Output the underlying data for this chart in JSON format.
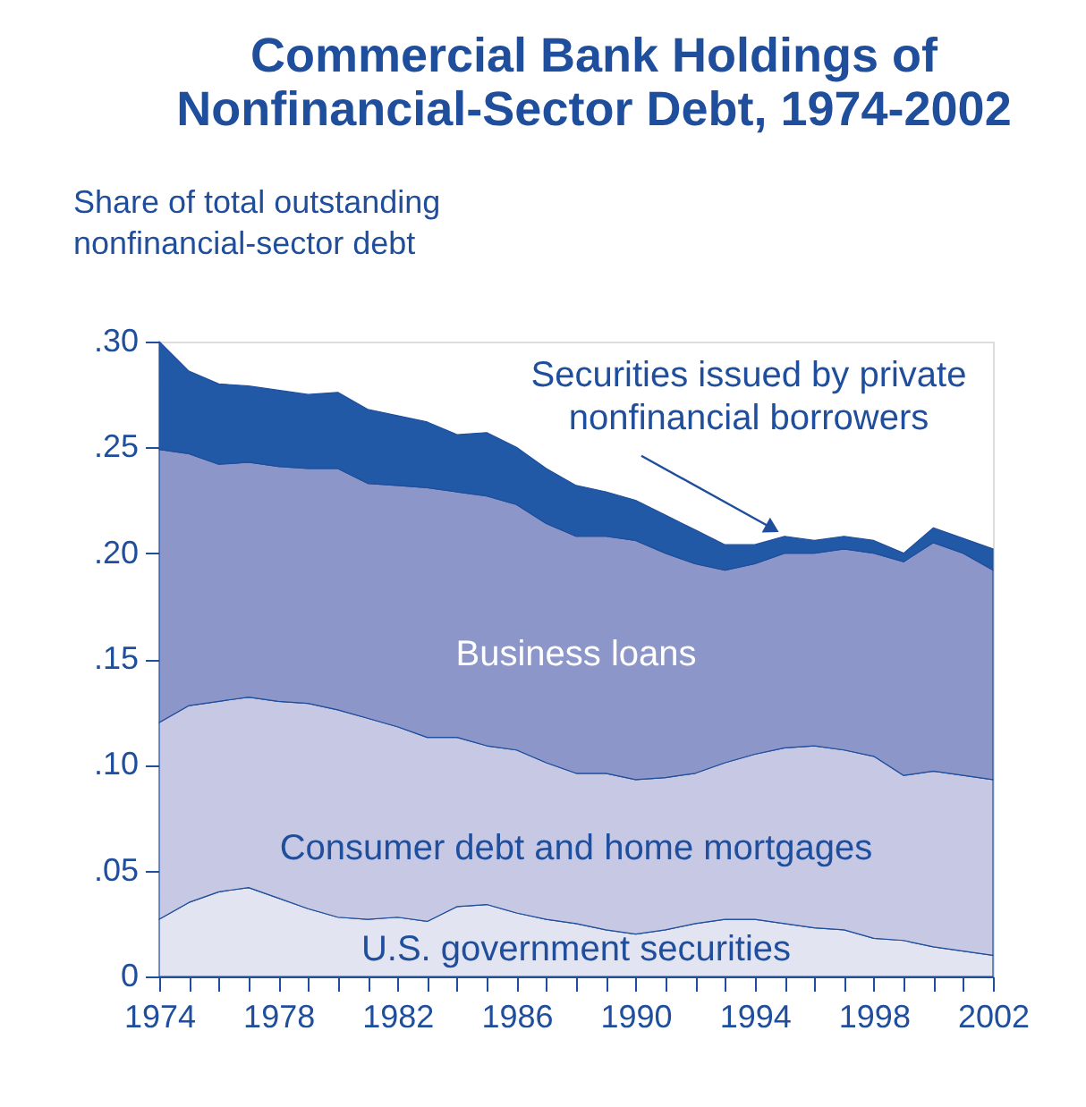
{
  "chart_data": {
    "type": "area",
    "stacked": true,
    "title": "Commercial Bank Holdings of\nNonfinancial-Sector Debt, 1974-2002",
    "ylabel": "Share of total outstanding\nnonfinancial-sector debt",
    "x": [
      1974,
      1975,
      1976,
      1977,
      1978,
      1979,
      1980,
      1981,
      1982,
      1983,
      1984,
      1985,
      1986,
      1987,
      1988,
      1989,
      1990,
      1991,
      1992,
      1993,
      1994,
      1995,
      1996,
      1997,
      1998,
      1999,
      2000,
      2001,
      2002
    ],
    "series": [
      {
        "name": "U.S. government securities",
        "color": "#e3e4f2",
        "values": [
          0.027,
          0.035,
          0.04,
          0.042,
          0.037,
          0.032,
          0.028,
          0.027,
          0.028,
          0.026,
          0.033,
          0.034,
          0.03,
          0.027,
          0.025,
          0.022,
          0.02,
          0.022,
          0.025,
          0.027,
          0.027,
          0.025,
          0.023,
          0.022,
          0.018,
          0.017,
          0.014,
          0.012,
          0.01
        ]
      },
      {
        "name": "Consumer debt and home mortgages",
        "color": "#c6c8e4",
        "values": [
          0.093,
          0.093,
          0.09,
          0.09,
          0.093,
          0.097,
          0.098,
          0.095,
          0.09,
          0.087,
          0.08,
          0.075,
          0.077,
          0.074,
          0.071,
          0.074,
          0.073,
          0.072,
          0.071,
          0.074,
          0.078,
          0.083,
          0.086,
          0.085,
          0.086,
          0.078,
          0.083,
          0.083,
          0.083
        ]
      },
      {
        "name": "Business loans",
        "color": "#8c96c8",
        "values": [
          0.129,
          0.119,
          0.112,
          0.111,
          0.111,
          0.111,
          0.114,
          0.111,
          0.114,
          0.118,
          0.116,
          0.118,
          0.116,
          0.113,
          0.112,
          0.112,
          0.113,
          0.106,
          0.099,
          0.091,
          0.09,
          0.092,
          0.091,
          0.095,
          0.096,
          0.101,
          0.108,
          0.105,
          0.099
        ]
      },
      {
        "name": "Securities issued by private\nnonfinancial borrowers",
        "color": "#2159a6",
        "values": [
          0.051,
          0.039,
          0.038,
          0.036,
          0.036,
          0.035,
          0.036,
          0.035,
          0.033,
          0.031,
          0.027,
          0.03,
          0.027,
          0.026,
          0.024,
          0.021,
          0.019,
          0.018,
          0.016,
          0.012,
          0.009,
          0.008,
          0.006,
          0.006,
          0.006,
          0.004,
          0.007,
          0.007,
          0.01
        ]
      }
    ],
    "xlim": [
      1974,
      2002
    ],
    "xticks": [
      1974,
      {
        "value": 1975,
        "label": null
      },
      {
        "value": 1976,
        "label": null
      },
      {
        "value": 1977,
        "label": null
      },
      1978,
      {
        "value": 1979,
        "label": null
      },
      {
        "value": 1980,
        "label": null
      },
      {
        "value": 1981,
        "label": null
      },
      1982,
      {
        "value": 1983,
        "label": null
      },
      {
        "value": 1984,
        "label": null
      },
      {
        "value": 1985,
        "label": null
      },
      1986,
      {
        "value": 1987,
        "label": null
      },
      {
        "value": 1988,
        "label": null
      },
      {
        "value": 1989,
        "label": null
      },
      1990,
      {
        "value": 1991,
        "label": null
      },
      {
        "value": 1992,
        "label": null
      },
      {
        "value": 1993,
        "label": null
      },
      1994,
      {
        "value": 1995,
        "label": null
      },
      {
        "value": 1996,
        "label": null
      },
      {
        "value": 1997,
        "label": null
      },
      1998,
      {
        "value": 1999,
        "label": null
      },
      {
        "value": 2000,
        "label": null
      },
      {
        "value": 2001,
        "label": null
      },
      2002
    ],
    "ylim": [
      0,
      0.3
    ],
    "yticks": [
      {
        "value": 0,
        "label": "0"
      },
      {
        "value": 0.05,
        "label": ".05"
      },
      {
        "value": 0.1,
        "label": ".10"
      },
      {
        "value": 0.15,
        "label": ".15"
      },
      {
        "value": 0.2,
        "label": ".20"
      },
      {
        "value": 0.25,
        "label": ".25"
      },
      {
        "value": 0.3,
        "label": ".30"
      }
    ],
    "grid": false,
    "legend": false
  }
}
